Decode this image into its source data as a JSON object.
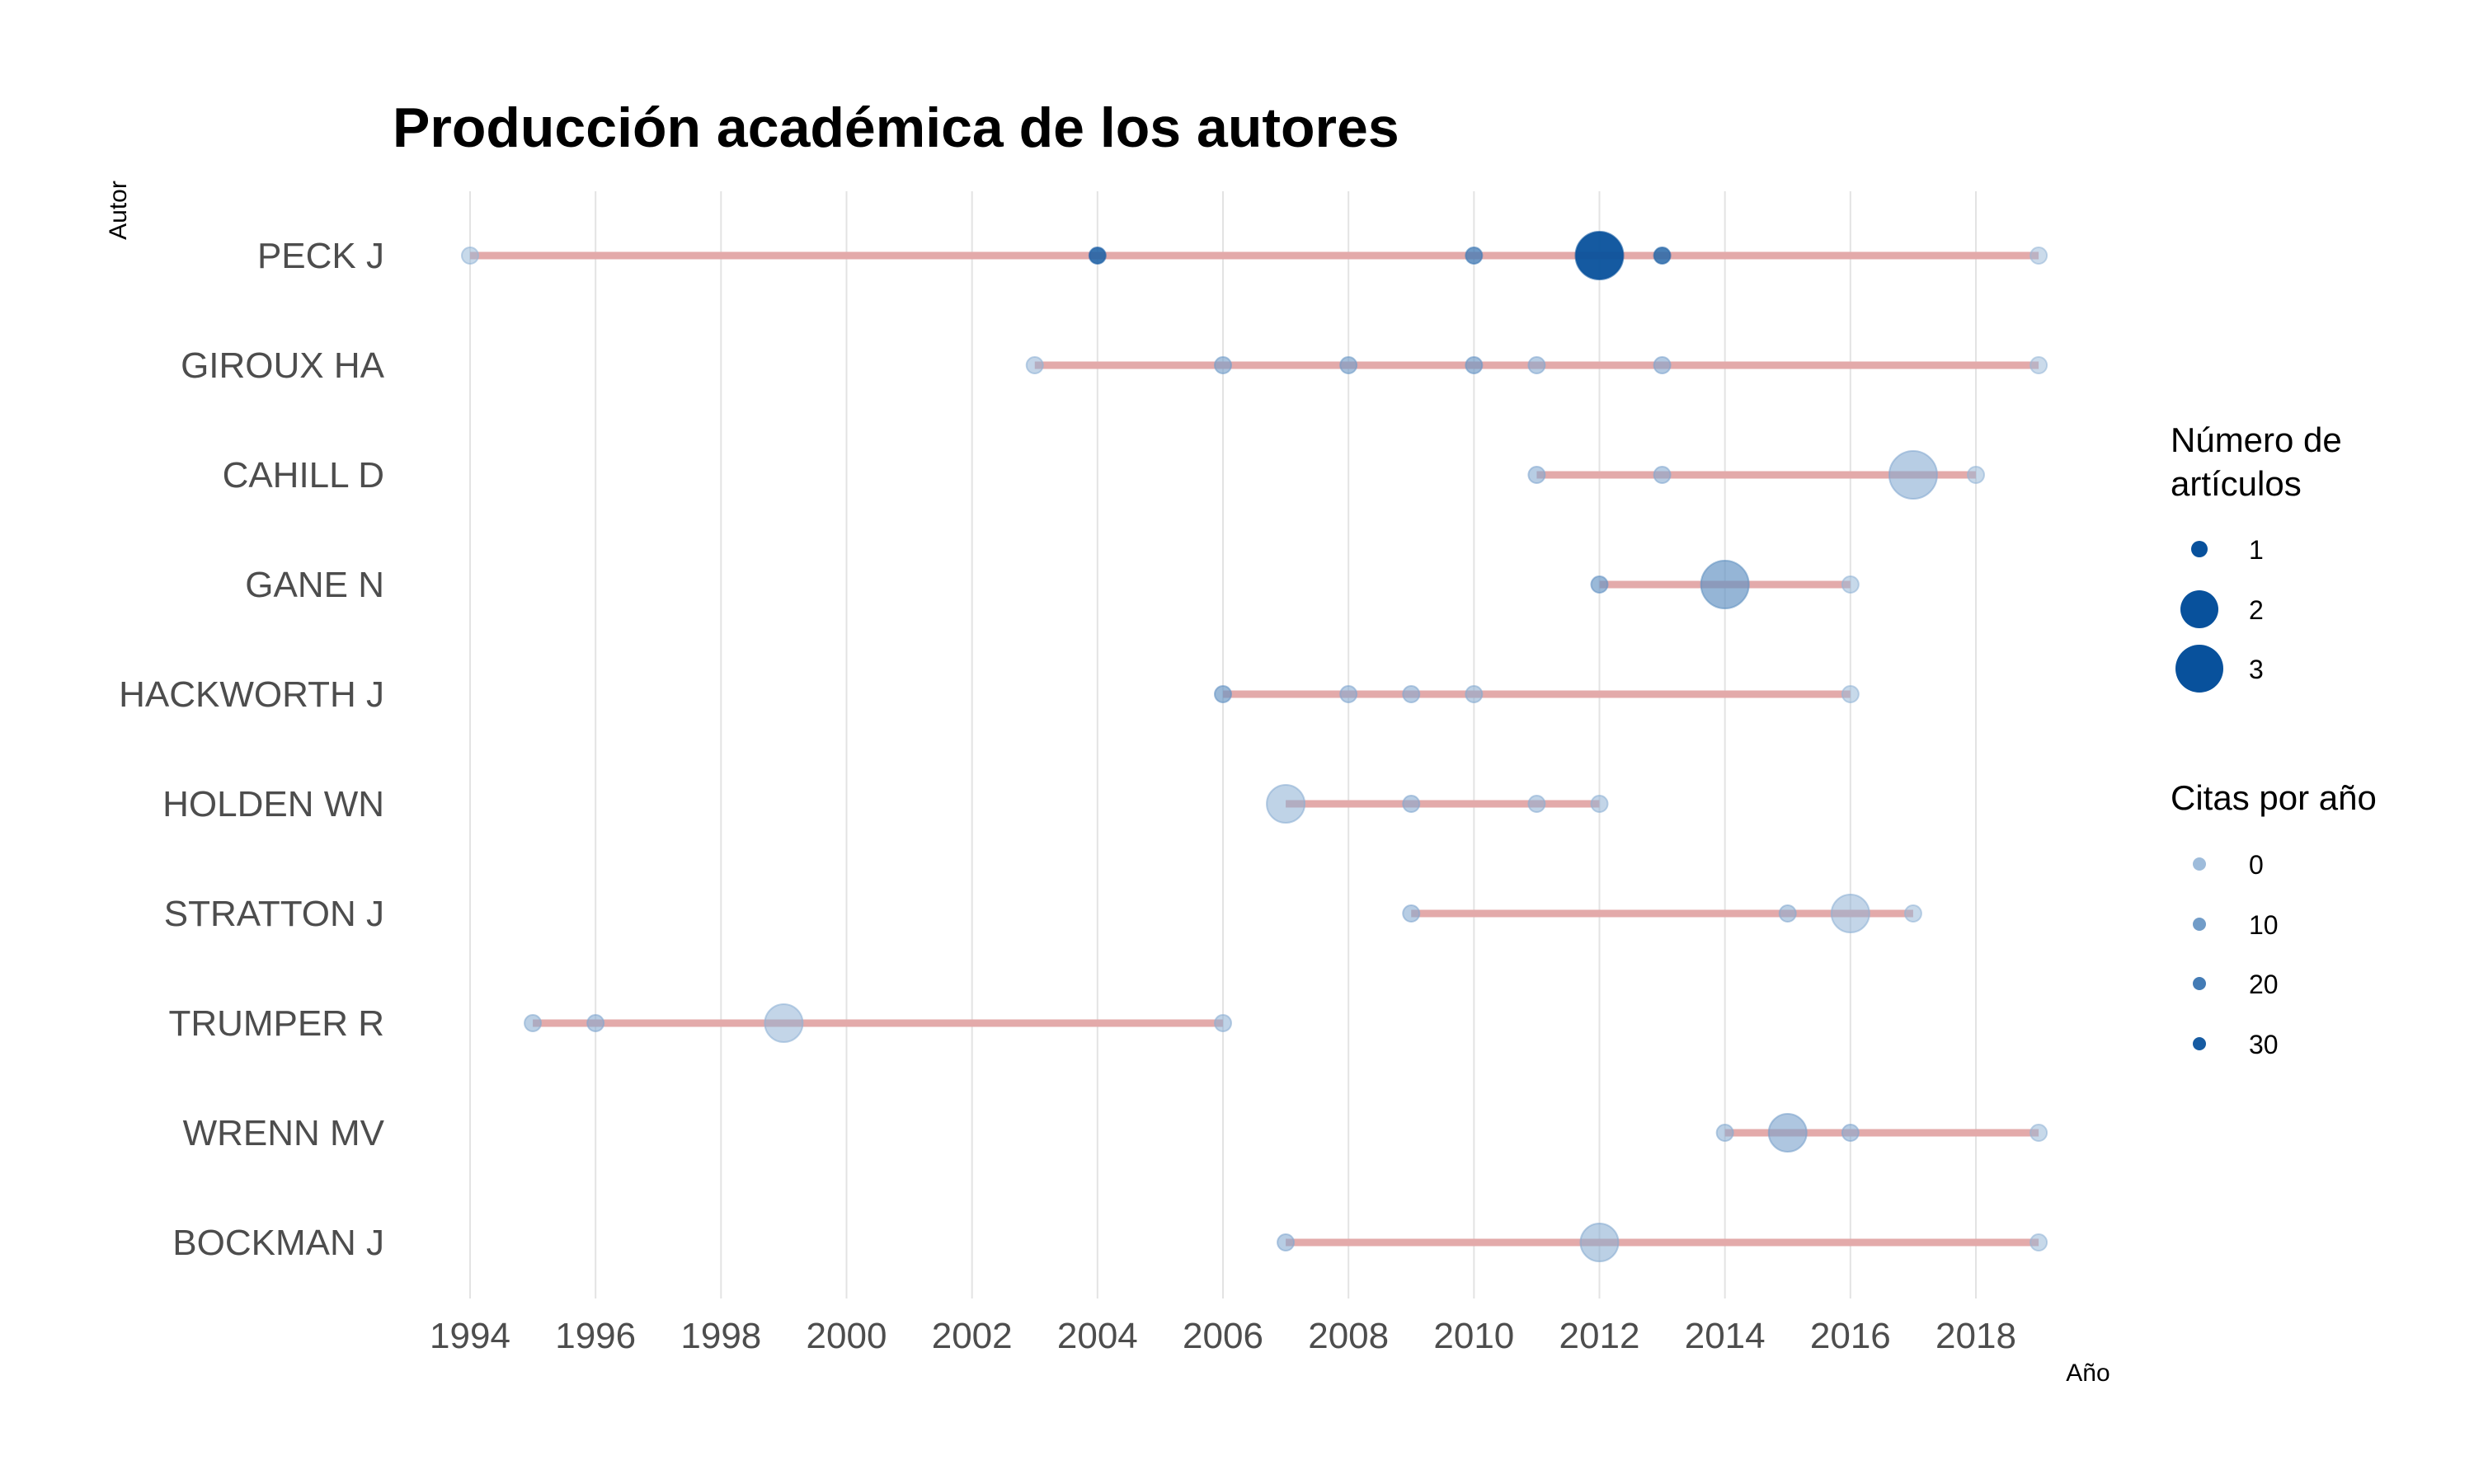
{
  "chart_data": {
    "type": "scatter",
    "title": "Producción académica de los autores",
    "xlabel": "Año",
    "ylabel": "Autor",
    "xlim": [
      1994,
      2019
    ],
    "x_ticks": [
      1994,
      1996,
      1998,
      2000,
      2002,
      2004,
      2006,
      2008,
      2010,
      2012,
      2014,
      2016,
      2018
    ],
    "grid": true,
    "legend_position": "right",
    "colors": {
      "segment": "#e3aaaa",
      "point_base": "#08519c",
      "point_light": "#9ebcdb"
    },
    "authors": [
      {
        "name": "PECK J",
        "start": 1994,
        "end": 2019,
        "points": [
          {
            "year": 1994,
            "articles": 1,
            "citations_per_year": 2
          },
          {
            "year": 2004,
            "articles": 1,
            "citations_per_year": 28
          },
          {
            "year": 2010,
            "articles": 1,
            "citations_per_year": 20
          },
          {
            "year": 2012,
            "articles": 3,
            "citations_per_year": 33
          },
          {
            "year": 2013,
            "articles": 1,
            "citations_per_year": 26
          },
          {
            "year": 2019,
            "articles": 1,
            "citations_per_year": 1
          }
        ]
      },
      {
        "name": "GIROUX HA",
        "start": 2003,
        "end": 2019,
        "points": [
          {
            "year": 2003,
            "articles": 1,
            "citations_per_year": 3
          },
          {
            "year": 2006,
            "articles": 1,
            "citations_per_year": 9
          },
          {
            "year": 2008,
            "articles": 1,
            "citations_per_year": 10
          },
          {
            "year": 2010,
            "articles": 1,
            "citations_per_year": 11
          },
          {
            "year": 2011,
            "articles": 1,
            "citations_per_year": 6
          },
          {
            "year": 2013,
            "articles": 1,
            "citations_per_year": 7
          },
          {
            "year": 2019,
            "articles": 1,
            "citations_per_year": 1
          }
        ]
      },
      {
        "name": "CAHILL D",
        "start": 2011,
        "end": 2018,
        "points": [
          {
            "year": 2011,
            "articles": 1,
            "citations_per_year": 6
          },
          {
            "year": 2013,
            "articles": 1,
            "citations_per_year": 6
          },
          {
            "year": 2017,
            "articles": 3,
            "citations_per_year": 6
          },
          {
            "year": 2018,
            "articles": 1,
            "citations_per_year": 2
          }
        ]
      },
      {
        "name": "GANE N",
        "start": 2012,
        "end": 2016,
        "points": [
          {
            "year": 2012,
            "articles": 1,
            "citations_per_year": 12
          },
          {
            "year": 2014,
            "articles": 3,
            "citations_per_year": 13
          },
          {
            "year": 2016,
            "articles": 1,
            "citations_per_year": 2
          }
        ]
      },
      {
        "name": "HACKWORTH J",
        "start": 2006,
        "end": 2016,
        "points": [
          {
            "year": 2006,
            "articles": 1,
            "citations_per_year": 12
          },
          {
            "year": 2008,
            "articles": 1,
            "citations_per_year": 6
          },
          {
            "year": 2009,
            "articles": 1,
            "citations_per_year": 6
          },
          {
            "year": 2010,
            "articles": 1,
            "citations_per_year": 5
          },
          {
            "year": 2016,
            "articles": 1,
            "citations_per_year": 2
          }
        ]
      },
      {
        "name": "HOLDEN WN",
        "start": 2007,
        "end": 2012,
        "points": [
          {
            "year": 2007,
            "articles": 2,
            "citations_per_year": 4
          },
          {
            "year": 2009,
            "articles": 1,
            "citations_per_year": 6
          },
          {
            "year": 2011,
            "articles": 1,
            "citations_per_year": 4
          },
          {
            "year": 2012,
            "articles": 1,
            "citations_per_year": 3
          }
        ]
      },
      {
        "name": "STRATTON J",
        "start": 2009,
        "end": 2017,
        "points": [
          {
            "year": 2009,
            "articles": 1,
            "citations_per_year": 6
          },
          {
            "year": 2015,
            "articles": 1,
            "citations_per_year": 5
          },
          {
            "year": 2016,
            "articles": 2,
            "citations_per_year": 3
          },
          {
            "year": 2017,
            "articles": 1,
            "citations_per_year": 2
          }
        ]
      },
      {
        "name": "TRUMPER R",
        "start": 1995,
        "end": 2006,
        "points": [
          {
            "year": 1995,
            "articles": 1,
            "citations_per_year": 5
          },
          {
            "year": 1996,
            "articles": 1,
            "citations_per_year": 6
          },
          {
            "year": 1999,
            "articles": 2,
            "citations_per_year": 3
          },
          {
            "year": 2006,
            "articles": 1,
            "citations_per_year": 4
          }
        ]
      },
      {
        "name": "WRENN MV",
        "start": 2014,
        "end": 2019,
        "points": [
          {
            "year": 2014,
            "articles": 1,
            "citations_per_year": 5
          },
          {
            "year": 2015,
            "articles": 2,
            "citations_per_year": 8
          },
          {
            "year": 2016,
            "articles": 1,
            "citations_per_year": 6
          },
          {
            "year": 2019,
            "articles": 1,
            "citations_per_year": 2
          }
        ]
      },
      {
        "name": "BOCKMAN J",
        "start": 2007,
        "end": 2019,
        "points": [
          {
            "year": 2007,
            "articles": 1,
            "citations_per_year": 6
          },
          {
            "year": 2012,
            "articles": 2,
            "citations_per_year": 5
          },
          {
            "year": 2019,
            "articles": 1,
            "citations_per_year": 2
          }
        ]
      }
    ],
    "legend_size": {
      "title_lines": [
        "Número de",
        "artículos"
      ],
      "items": [
        {
          "label": "1",
          "value": 1
        },
        {
          "label": "2",
          "value": 2
        },
        {
          "label": "3",
          "value": 3
        }
      ]
    },
    "legend_color": {
      "title": "Citas por año",
      "items": [
        {
          "label": "0",
          "value": 0
        },
        {
          "label": "10",
          "value": 10
        },
        {
          "label": "20",
          "value": 20
        },
        {
          "label": "30",
          "value": 30
        }
      ]
    }
  }
}
